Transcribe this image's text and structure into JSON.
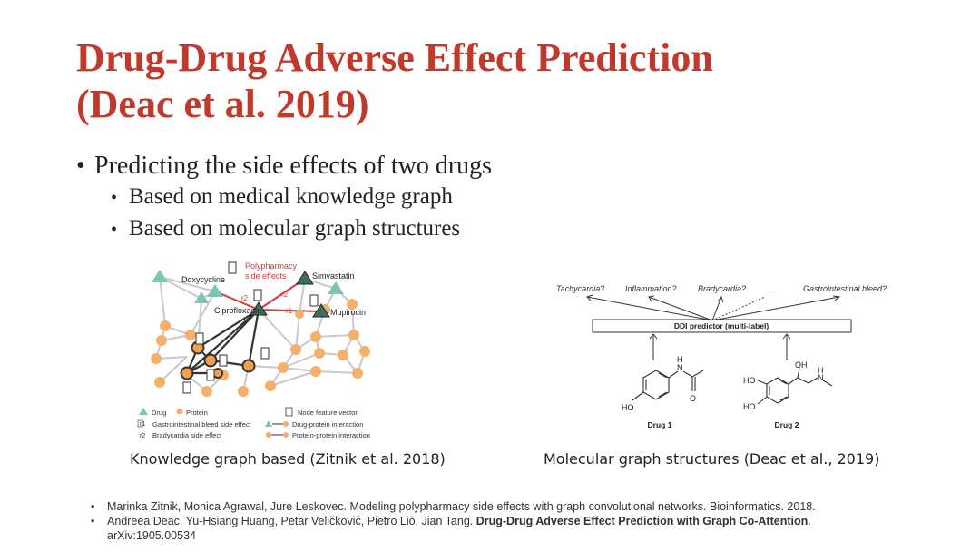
{
  "title": {
    "line1": "Drug-Drug Adverse Effect Prediction",
    "line2": "(Deac et al. 2019)"
  },
  "bullets": {
    "main": "Predicting the side effects of two drugs",
    "sub": [
      "Based on medical knowledge graph",
      "Based on molecular graph structures"
    ]
  },
  "kg_figure": {
    "drugs": [
      "Doxycycline",
      "Simvastatin",
      "Ciprofloxacin",
      "Mupirocin"
    ],
    "polypharmacy_label": [
      "Polypharmacy",
      "side effects"
    ],
    "edge_labels": [
      "r2",
      "r2",
      "r1"
    ],
    "legend": {
      "drug": "Drug",
      "protein": "Protein",
      "node_feature": "Node feature vector",
      "r1": "Gastrointestinal bleed side effect",
      "r2": "Bradycardia side effect",
      "drug_protein": "Drug-protein interaction",
      "protein_protein": "Protein-protein interaction",
      "r1_sym": "r1",
      "r2_sym": "r2"
    },
    "colors": {
      "drug": "#7cc5b5",
      "protein": "#f4b06a",
      "edge_red": "#d63a3a"
    }
  },
  "ddi_figure": {
    "outputs": [
      "Tachycardia?",
      "Inflammation?",
      "Bradycardia?",
      "...",
      "Gastrointestinal bleed?"
    ],
    "predictor": "DDI predictor (multi-label)",
    "drug1": "Drug 1",
    "drug2": "Drug 2",
    "atoms": {
      "n": "N",
      "h": "H",
      "o": "O",
      "ho": "HO",
      "oh": "OH"
    }
  },
  "captions": {
    "left": "Knowledge graph based (Zitnik et al. 2018)",
    "right": "Molecular graph structures (Deac et al., 2019)"
  },
  "references": {
    "ref1": "Marinka Zitnik, Monica Agrawal, Jure Leskovec. Modeling polypharmacy side effects with graph convolutional networks. Bioinformatics. 2018.",
    "ref2_authors": "Andreea Deac, Yu-Hsiang Huang, Petar Veličković, Pietro Liò, Jian Tang. ",
    "ref2_title": "Drug-Drug Adverse Effect Prediction with Graph Co-Attention",
    "ref2_end": ".",
    "ref2_line2": "arXiv:1905.00534"
  }
}
